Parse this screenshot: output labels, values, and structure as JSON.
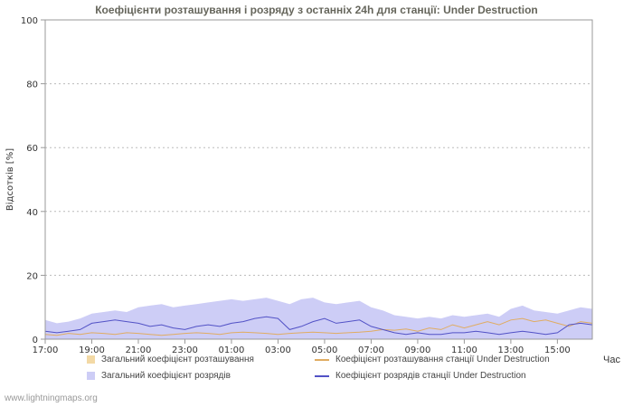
{
  "title": "Коефіцієнти розташування і розряду з останніх 24h для станції: Under Destruction",
  "ylabel": "Відсотків  [%]",
  "xlabel": "Час",
  "footer": "www.lightningmaps.org",
  "colors": {
    "title": "#66665c",
    "grid": "#bbbbbb",
    "plot_border": "#999999",
    "area_location_total": "#f3d9a5",
    "area_discharge_total": "#cdcdf6",
    "line_location_station": "#e0ac62",
    "line_discharge_station": "#5252c6"
  },
  "legend": {
    "items": [
      {
        "label": "Загальний коефіцієнт розташування",
        "swatch": "area",
        "color": "#f3d9a5"
      },
      {
        "label": "Коефіцієнт розташування станції Under Destruction",
        "swatch": "line",
        "color": "#e0ac62"
      },
      {
        "label": "Загальний коефіцієнт розрядів",
        "swatch": "area",
        "color": "#cdcdf6"
      },
      {
        "label": "Коефіцієнт розрядів станції Under Destruction",
        "swatch": "line",
        "color": "#5252c6"
      }
    ]
  },
  "chart_data": {
    "type": "area",
    "title": "Коефіцієнти розташування і розряду з останніх 24h для станції: Under Destruction",
    "xlabel": "Час",
    "ylabel": "Відсотків  [%]",
    "ylim": [
      0,
      100
    ],
    "y_ticks": [
      0,
      20,
      40,
      60,
      80,
      100
    ],
    "x_range": [
      0,
      23.5
    ],
    "x_step": 0.5,
    "x_tick_hours": [
      0,
      2,
      4,
      6,
      8,
      10,
      12,
      14,
      16,
      18,
      20,
      22
    ],
    "x_tick_labels": [
      "17:00",
      "19:00",
      "21:00",
      "23:00",
      "01:00",
      "03:00",
      "05:00",
      "07:00",
      "09:00",
      "11:00",
      "13:00",
      "15:00"
    ],
    "grid": true,
    "legend_position": "bottom",
    "series": [
      {
        "name": "Загальний коефіцієнт розташування",
        "type": "area",
        "color": "#f3d9a5",
        "values": [
          2,
          1.8,
          1.6,
          1.9,
          2.2,
          2,
          1.8,
          2.1,
          2.4,
          2.2,
          2,
          1.9,
          2.1,
          2.3,
          2,
          1.8,
          2,
          2.2,
          2.4,
          2.1,
          1.9,
          2,
          2.2,
          2,
          1.8,
          1.9,
          2.1,
          2.3,
          2.2,
          2,
          1.9,
          2.1,
          2.3,
          2.5,
          2.2,
          2,
          2.2,
          2.4,
          2.6,
          2.3,
          2.1,
          2.4,
          2.6,
          2.8,
          2.5,
          2.2,
          2.4,
          2.3
        ]
      },
      {
        "name": "Загальний коефіцієнт розрядів",
        "type": "area",
        "color": "#cdcdf6",
        "values": [
          6,
          5,
          5.5,
          6.5,
          8,
          8.5,
          9,
          8.5,
          10,
          10.5,
          11,
          10,
          10.5,
          11,
          11.5,
          12,
          12.5,
          12,
          12.5,
          13,
          12,
          11,
          12.5,
          13,
          11.5,
          11,
          11.5,
          12,
          10,
          9,
          7.5,
          7,
          6.5,
          7,
          6.5,
          7.5,
          7,
          7.5,
          8,
          7,
          9.5,
          10.5,
          9,
          8.5,
          8,
          9,
          10,
          9.5
        ]
      },
      {
        "name": "Коефіцієнт розташування станції Under Destruction",
        "type": "line",
        "color": "#e0ac62",
        "values": [
          1.5,
          1.2,
          1.8,
          1.5,
          2,
          1.8,
          1.5,
          2,
          1.8,
          1.5,
          1.2,
          1.5,
          1.8,
          2,
          1.8,
          1.5,
          2,
          2.2,
          2,
          1.8,
          1.5,
          1.8,
          2,
          2.2,
          2,
          1.8,
          2,
          2.2,
          2.5,
          3,
          2.8,
          3.2,
          2.5,
          3.5,
          3,
          4.5,
          3.5,
          4.5,
          5.5,
          4.5,
          6,
          6.5,
          5.5,
          6,
          5,
          4,
          5.5,
          5
        ]
      },
      {
        "name": "Коефіцієнт розрядів станції Under Destruction",
        "type": "line",
        "color": "#5252c6",
        "values": [
          2.5,
          2,
          2.5,
          3,
          5,
          5.5,
          6,
          5.5,
          5,
          4,
          4.5,
          3.5,
          3,
          4,
          4.5,
          4,
          5,
          5.5,
          6.5,
          7,
          6.5,
          3,
          4,
          5.5,
          6.5,
          5,
          5.5,
          6,
          4,
          3,
          2,
          1.5,
          2,
          1.5,
          1.5,
          2,
          2,
          2.5,
          2,
          1.5,
          2,
          2.5,
          2,
          1.5,
          2,
          4.5,
          5,
          4.5
        ]
      }
    ]
  }
}
